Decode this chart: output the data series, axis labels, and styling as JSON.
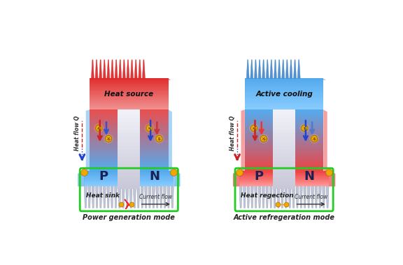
{
  "bg_color": "#ffffff",
  "left_title": "Heat source",
  "right_title": "Active cooling",
  "left_bottom_label": "Heat sink",
  "right_bottom_label": "Heat regection",
  "left_mode": "Power generation mode",
  "right_mode": "Active refregeration mode",
  "heat_flow_label": "Heat flow Q",
  "p_label": "P",
  "n_label": "N",
  "circuit_color": "#22cc22",
  "circuit_lw": 2.0,
  "red1": "#e83030",
  "red2": "#f07070",
  "blue1": "#3399ee",
  "blue2": "#88ccff",
  "blue3": "#55aadd",
  "fin_base_color": "#c0c4d8",
  "fin_edge_color": "#9099aa",
  "gold_color": "#f0a800",
  "white_gap": "#e8e8f0"
}
